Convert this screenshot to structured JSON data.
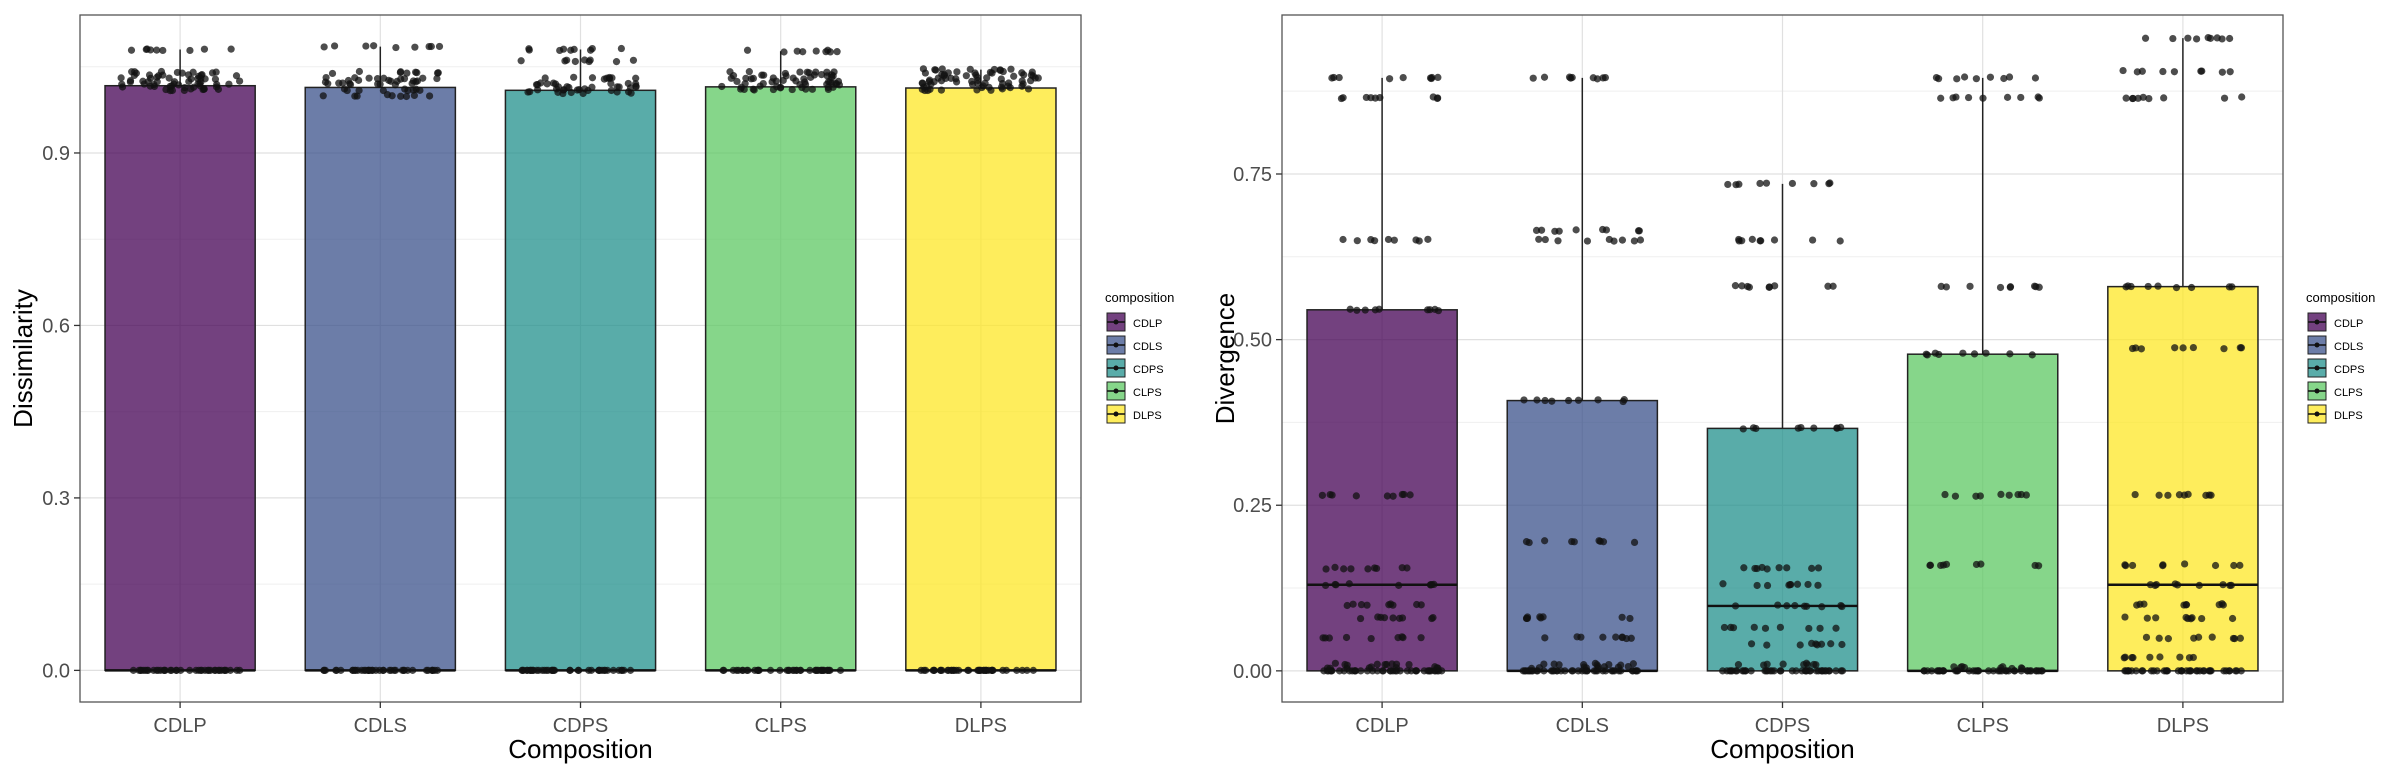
{
  "palette": {
    "CDLP": "#440154",
    "CDLS": "#3B528B",
    "CDPS": "#21908C",
    "CLPS": "#5DC863",
    "DLPS": "#FDE725"
  },
  "chart_data": [
    {
      "type": "box",
      "xlabel": "Composition",
      "ylabel": "Dissimilarity",
      "ylim": [
        -0.055,
        1.14
      ],
      "yticks": [
        0.0,
        0.3,
        0.6,
        0.9
      ],
      "ytick_labels": [
        "0.0",
        "0.3",
        "0.6",
        "0.9"
      ],
      "grid": true,
      "legend": {
        "title": "composition",
        "entries": [
          "CDLP",
          "CDLS",
          "CDPS",
          "CLPS",
          "DLPS"
        ],
        "position": "right"
      },
      "categories": [
        "CDLP",
        "CDLS",
        "CDPS",
        "CLPS",
        "DLPS"
      ],
      "boxes": [
        {
          "name": "CDLP",
          "lower": 0.0,
          "q1": 0.0,
          "median": 0.0,
          "q3": 1.017,
          "upper": 1.08
        },
        {
          "name": "CDLS",
          "lower": 0.0,
          "q1": 0.0,
          "median": 0.0,
          "q3": 1.014,
          "upper": 1.085
        },
        {
          "name": "CDPS",
          "lower": 0.0,
          "q1": 0.0,
          "median": 0.0,
          "q3": 1.009,
          "upper": 1.08
        },
        {
          "name": "CLPS",
          "lower": 0.0,
          "q1": 0.0,
          "median": 0.0,
          "q3": 1.015,
          "upper": 1.077
        },
        {
          "name": "DLPS",
          "lower": 0.0,
          "q1": 0.0,
          "median": 0.0,
          "q3": 1.013,
          "upper": 1.045
        }
      ],
      "points": [
        {
          "name": "CDLP",
          "y_levels": [
            0.0,
            1.01,
            1.015,
            1.02,
            1.025,
            1.03,
            1.035,
            1.04,
            1.08
          ]
        },
        {
          "name": "CDLS",
          "y_levels": [
            0.0,
            1.0,
            1.01,
            1.02,
            1.025,
            1.03,
            1.04,
            1.085
          ]
        },
        {
          "name": "CDPS",
          "y_levels": [
            0.0,
            1.005,
            1.01,
            1.015,
            1.02,
            1.03,
            1.06,
            1.08
          ]
        },
        {
          "name": "CLPS",
          "y_levels": [
            0.0,
            1.01,
            1.015,
            1.02,
            1.025,
            1.03,
            1.035,
            1.04,
            1.077
          ]
        },
        {
          "name": "DLPS",
          "y_levels": [
            0.0,
            1.01,
            1.015,
            1.02,
            1.025,
            1.03,
            1.035,
            1.04,
            1.045
          ]
        }
      ]
    },
    {
      "type": "box",
      "xlabel": "Composition",
      "ylabel": "Divergence",
      "ylim": [
        -0.047,
        0.99
      ],
      "yticks": [
        0.0,
        0.25,
        0.5,
        0.75
      ],
      "ytick_labels": [
        "0.00",
        "0.25",
        "0.50",
        "0.75"
      ],
      "grid": true,
      "legend": {
        "title": "composition",
        "entries": [
          "CDLP",
          "CDLS",
          "CDPS",
          "CLPS",
          "DLPS"
        ],
        "position": "right"
      },
      "categories": [
        "CDLP",
        "CDLS",
        "CDPS",
        "CLPS",
        "DLPS"
      ],
      "boxes": [
        {
          "name": "CDLP",
          "lower": 0.0,
          "q1": 0.0,
          "median": 0.13,
          "q3": 0.545,
          "upper": 0.895
        },
        {
          "name": "CDLS",
          "lower": 0.0,
          "q1": 0.0,
          "median": 0.0,
          "q3": 0.408,
          "upper": 0.895
        },
        {
          "name": "CDPS",
          "lower": 0.0,
          "q1": 0.0,
          "median": 0.098,
          "q3": 0.366,
          "upper": 0.735
        },
        {
          "name": "CLPS",
          "lower": 0.0,
          "q1": 0.0,
          "median": 0.0,
          "q3": 0.478,
          "upper": 0.895
        },
        {
          "name": "DLPS",
          "lower": 0.0,
          "q1": 0.0,
          "median": 0.13,
          "q3": 0.58,
          "upper": 0.955
        }
      ],
      "points": [
        {
          "name": "CDLP",
          "y_levels": [
            0.0,
            0.005,
            0.01,
            0.05,
            0.08,
            0.1,
            0.13,
            0.155,
            0.265,
            0.545,
            0.65,
            0.865,
            0.895
          ]
        },
        {
          "name": "CDLS",
          "y_levels": [
            0.0,
            0.005,
            0.01,
            0.05,
            0.08,
            0.195,
            0.408,
            0.65,
            0.665,
            0.895
          ]
        },
        {
          "name": "CDPS",
          "y_levels": [
            0.0,
            0.01,
            0.04,
            0.065,
            0.098,
            0.13,
            0.155,
            0.366,
            0.58,
            0.65,
            0.735
          ]
        },
        {
          "name": "CLPS",
          "y_levels": [
            0.0,
            0.005,
            0.16,
            0.265,
            0.478,
            0.58,
            0.865,
            0.895
          ]
        },
        {
          "name": "DLPS",
          "y_levels": [
            0.0,
            0.02,
            0.05,
            0.08,
            0.1,
            0.13,
            0.16,
            0.265,
            0.487,
            0.58,
            0.865,
            0.905,
            0.955
          ]
        }
      ]
    }
  ]
}
